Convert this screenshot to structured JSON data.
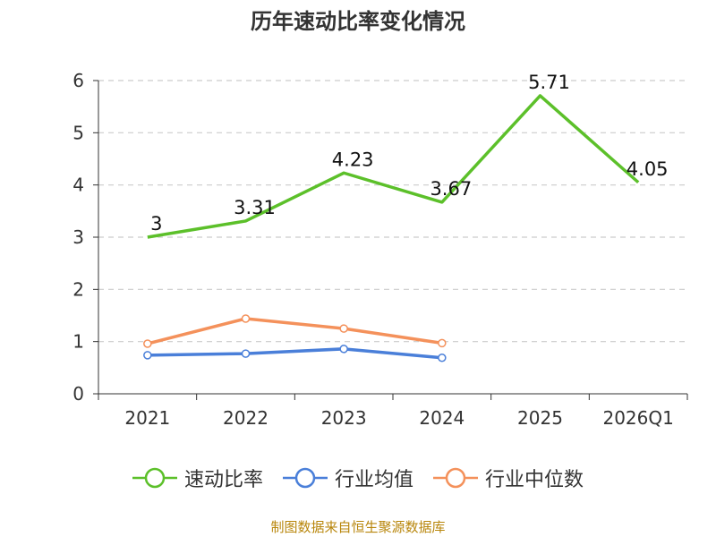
{
  "chart_data": {
    "type": "line",
    "title": "历年速动比率变化情况",
    "categories": [
      "2021",
      "2022",
      "2023",
      "2024",
      "2025",
      "2026Q1"
    ],
    "y_ticks": [
      "0",
      "1",
      "2",
      "3",
      "4",
      "5",
      "6"
    ],
    "ylim": [
      0,
      6
    ],
    "grid": true,
    "legend_position": "bottom",
    "series": [
      {
        "name": "速动比率",
        "color": "#5cc02a",
        "values": [
          3,
          3.31,
          4.23,
          3.67,
          5.71,
          4.05
        ],
        "labels": [
          "3",
          "3.31",
          "4.23",
          "3.67",
          "5.71",
          "4.05"
        ],
        "show_labels": true,
        "show_markers": false
      },
      {
        "name": "行业均值",
        "color": "#4a7fd9",
        "values": [
          0.74,
          0.77,
          0.86,
          0.69,
          null,
          null
        ],
        "labels": [],
        "show_labels": false,
        "show_markers": true
      },
      {
        "name": "行业中位数",
        "color": "#f4915b",
        "values": [
          0.96,
          1.44,
          1.25,
          0.97,
          null,
          null
        ],
        "labels": [],
        "show_labels": false,
        "show_markers": true
      }
    ]
  },
  "source": "制图数据来自恒生聚源数据库"
}
